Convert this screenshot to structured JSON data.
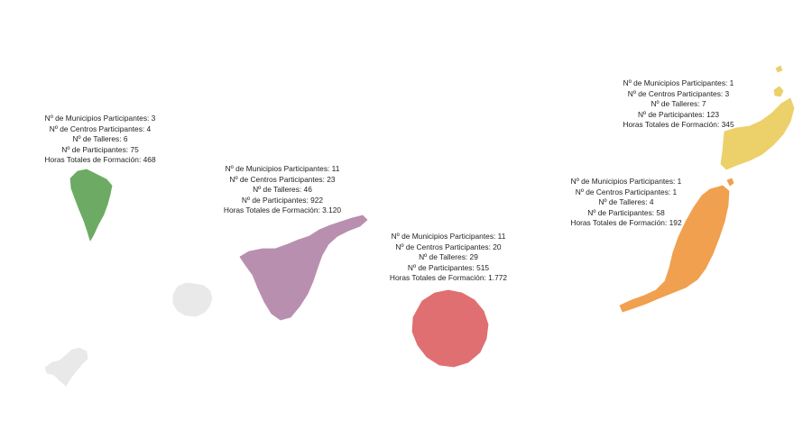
{
  "islands": [
    {
      "key": "la_palma",
      "color": "#6dab64",
      "lines": [
        "Nº de Municipios Participantes: 3",
        "Nº de Centros Participantes: 4",
        "Nº de Talleres: 6",
        "Nº de Participantes: 75",
        "Horas Totales de Formación: 468"
      ]
    },
    {
      "key": "tenerife",
      "color": "#b98faf",
      "lines": [
        "Nº de Municipios Participantes: 11",
        "Nº de Centros Participantes: 23",
        "Nº de Talleres: 46",
        "Nº de Participantes: 922",
        "Horas Totales de Formación: 3.120"
      ]
    },
    {
      "key": "gran_canaria",
      "color": "#e06f72",
      "lines": [
        "Nº de Municipios Participantes: 11",
        "Nº de Centros Participantes: 20",
        "Nº de Talleres: 29",
        "Nº de Participantes: 515",
        "Horas Totales de Formación: 1.772"
      ]
    },
    {
      "key": "fuerteventura",
      "color": "#f0a04e",
      "lines": [
        "Nº de Municipios Participantes: 1",
        "Nº de Centros Participantes: 1",
        "Nº de Talleres: 4",
        "Nº de Participantes: 58",
        "Horas Totales de Formación: 192"
      ]
    },
    {
      "key": "lanzarote",
      "color": "#ecd06a",
      "lines": [
        "Nº de Municipios Participantes: 1",
        "Nº de Centros Participantes: 3",
        "Nº de Talleres: 7",
        "Nº de Participantes: 123",
        "Horas Totales de Formación: 345"
      ]
    }
  ],
  "inactive_color": "#e9e9e9"
}
